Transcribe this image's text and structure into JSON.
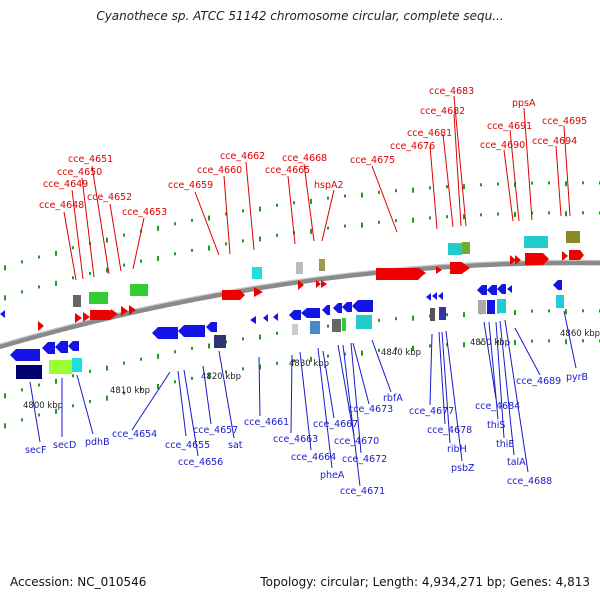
{
  "title": "Cyanothece sp. ATCC 51142 chromosome circular, complete sequ...",
  "footer": {
    "accession": "Accession: NC_010546",
    "summary": "Topology: circular; Length: 4,934,271 bp; Genes: 4,813"
  },
  "colors": {
    "forward_cds": "#ee0000",
    "reverse_cds": "#1414e6",
    "forward_label": "#dd0000",
    "reverse_label": "#1a1acc",
    "backbone": "#8a8a8a",
    "green_feature": "#33cc33",
    "cyan_feature": "#22cccc",
    "olive_feature": "#8a8a22",
    "navy_feature": "#000070",
    "lime_feature": "#99ff33",
    "gray_feature": "#888888"
  },
  "scale_labels": [
    "4800 kbp",
    "4810 kbp",
    "4820 kbp",
    "4830 kbp",
    "4840 kbp",
    "4850 kbp",
    "4860 kbp"
  ],
  "forward_labels": [
    "cce_4648",
    "cce_4649",
    "cce_4650",
    "cce_4651",
    "cce_4652",
    "cce_4653",
    "cce_4659",
    "cce_4660",
    "cce_4662",
    "cce_4665",
    "cce_4668",
    "hspA2",
    "cce_4675",
    "cce_4676",
    "cce_4681",
    "cce_4682",
    "cce_4683",
    "cce_4690",
    "cce_4691",
    "ppsA",
    "cce_4694",
    "cce_4695"
  ],
  "reverse_labels": [
    "secF",
    "secD",
    "pdhB",
    "cce_4654",
    "cce_4655",
    "cce_4656",
    "cce_4657",
    "sat",
    "cce_4661",
    "cce_4663",
    "cce_4664",
    "pheA",
    "cce_4667",
    "cce_4670",
    "cce_4671",
    "cce_4672",
    "cce_4673",
    "rbfA",
    "cce_4677",
    "cce_4678",
    "ribH",
    "psbZ",
    "cce_4684",
    "thiS",
    "thiE",
    "talA",
    "cce_4688",
    "cce_4689",
    "pyrB"
  ]
}
